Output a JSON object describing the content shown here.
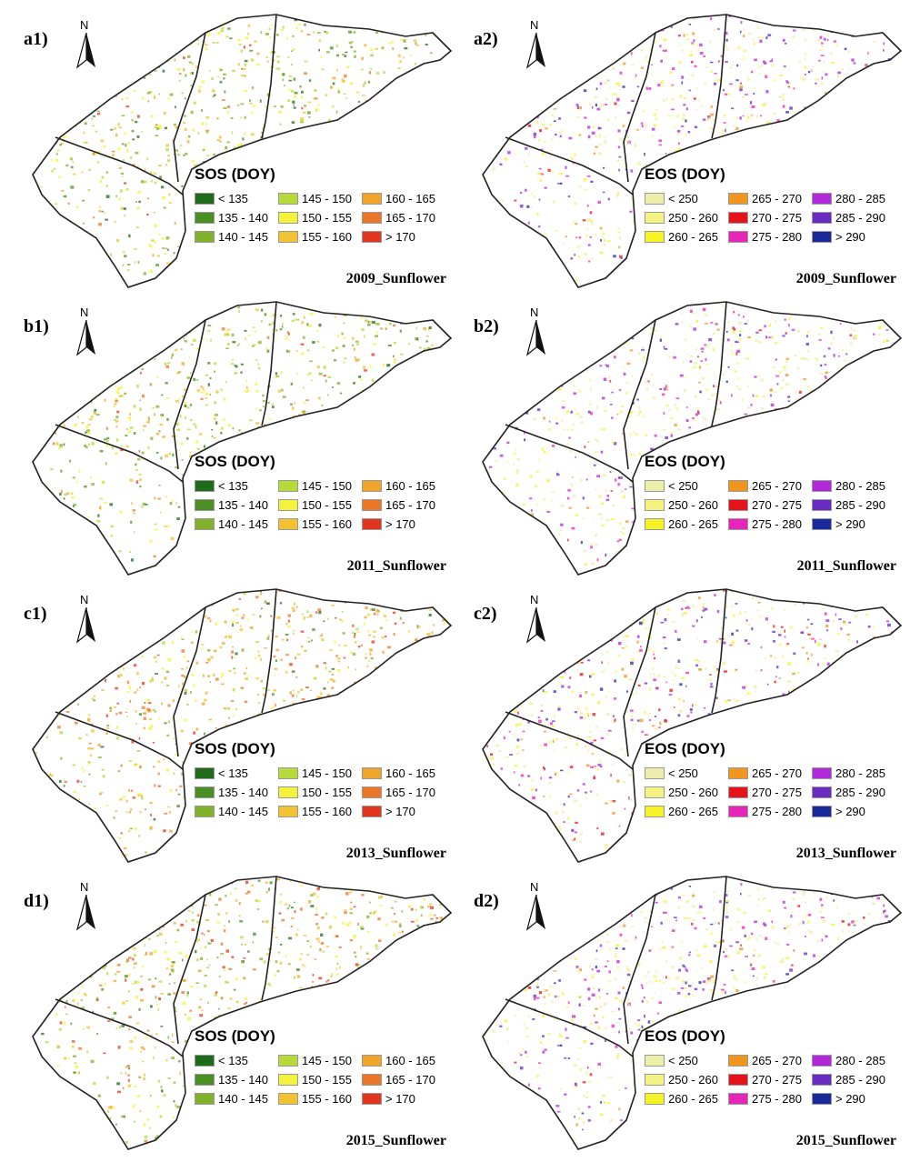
{
  "panels": [
    {
      "label": "a1)",
      "type": "SOS",
      "caption": "2009_Sunflower"
    },
    {
      "label": "a2)",
      "type": "EOS",
      "caption": "2009_Sunflower"
    },
    {
      "label": "b1)",
      "type": "SOS",
      "caption": "2011_Sunflower"
    },
    {
      "label": "b2)",
      "type": "EOS",
      "caption": "2011_Sunflower"
    },
    {
      "label": "c1)",
      "type": "SOS",
      "caption": "2013_Sunflower"
    },
    {
      "label": "c2)",
      "type": "EOS",
      "caption": "2013_Sunflower"
    },
    {
      "label": "d1)",
      "type": "SOS",
      "caption": "2015_Sunflower"
    },
    {
      "label": "d2)",
      "type": "EOS",
      "caption": "2015_Sunflower"
    }
  ],
  "north_label": "N",
  "legends": {
    "SOS": {
      "title": "SOS (DOY)",
      "classes": [
        {
          "label": "< 135",
          "color": "#1e6b1a"
        },
        {
          "label": "135 - 140",
          "color": "#4a8f24"
        },
        {
          "label": "140 - 145",
          "color": "#82b22c"
        },
        {
          "label": "145 - 150",
          "color": "#b8d93a"
        },
        {
          "label": "150 - 155",
          "color": "#f4f23a"
        },
        {
          "label": "155 - 160",
          "color": "#f2c233"
        },
        {
          "label": "160 - 165",
          "color": "#f0a42a"
        },
        {
          "label": "165 - 170",
          "color": "#ec7628"
        },
        {
          "label": "> 170",
          "color": "#e2351e"
        }
      ]
    },
    "EOS": {
      "title": "EOS (DOY)",
      "classes": [
        {
          "label": "< 250",
          "color": "#eeeeab"
        },
        {
          "label": "250 - 260",
          "color": "#f5f283"
        },
        {
          "label": "260 - 265",
          "color": "#f6f228"
        },
        {
          "label": "265 - 270",
          "color": "#f0961e"
        },
        {
          "label": "270 - 275",
          "color": "#e5141a"
        },
        {
          "label": "275 - 280",
          "color": "#e526b8"
        },
        {
          "label": "280 - 285",
          "color": "#b129d8"
        },
        {
          "label": "285 - 290",
          "color": "#6a2bc2"
        },
        {
          "label": "> 290",
          "color": "#1b2a9a"
        }
      ]
    }
  }
}
